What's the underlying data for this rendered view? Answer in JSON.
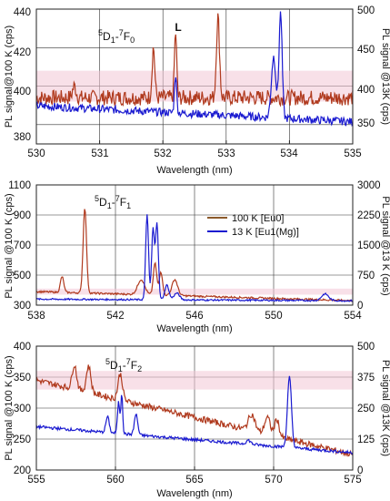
{
  "colors": {
    "series_100K": "#b03a1e",
    "series_13K": "#1a1ad0",
    "series_100K_legend": "#8b5a2b",
    "band": "#f3c6d6"
  },
  "chart_data": [
    {
      "type": "line",
      "annotation": {
        "main": "D",
        "pre1": "5",
        "sub1": "1",
        "dash": "-",
        "pre2": "7",
        "main2": "F",
        "sub2": "0"
      },
      "marker": "L",
      "xlabel": "Wavelength (nm)",
      "ylabel_left": "PL signal@100 K (cps)",
      "ylabel_right": "PL signal @13K (cps)",
      "xlim": [
        530,
        535
      ],
      "ylim_left": [
        370,
        440
      ],
      "ylim_right": [
        330,
        500
      ],
      "x_ticks": [
        "530",
        "531",
        "532",
        "533",
        "534",
        "535"
      ],
      "y_left_ticks": [
        "380",
        "400",
        "420",
        "440"
      ],
      "y_right_ticks": [
        "350",
        "400",
        "450",
        "500"
      ],
      "series": [
        {
          "axis": "left",
          "baseline": 394,
          "noise": 4,
          "x_start": 530,
          "x_end": 535,
          "peaks": [
            [
              531.85,
              420,
              0.03
            ],
            [
              532.2,
              428,
              0.025
            ],
            [
              532.87,
              436,
              0.035
            ],
            [
              530.6,
              400,
              0.04
            ]
          ]
        },
        {
          "axis": "right",
          "baseline": 378,
          "noise": 5,
          "x_start": 530,
          "x_end": 535,
          "slope_end": 358,
          "peaks": [
            [
              532.2,
              418,
              0.025
            ],
            [
              533.75,
              440,
              0.05
            ],
            [
              533.86,
              495,
              0.035
            ]
          ]
        }
      ]
    },
    {
      "type": "line",
      "annotation": {
        "main": "D",
        "pre1": "5",
        "sub1": "1",
        "dash": "-",
        "pre2": "7",
        "main2": "F",
        "sub2": "1"
      },
      "xlabel": "Wavelength (nm)",
      "ylabel_left": "PL signal @100 K (cps)",
      "ylabel_right": "PL signal @13 K (cps)",
      "xlim": [
        538,
        554
      ],
      "ylim_left": [
        300,
        1100
      ],
      "ylim_right": [
        0,
        3000
      ],
      "x_ticks": [
        "538",
        "542",
        "546",
        "550",
        "554"
      ],
      "y_left_ticks": [
        "300",
        "500",
        "700",
        "900",
        "1100"
      ],
      "y_right_ticks": [
        "0",
        "750",
        "1500",
        "2250",
        "3000"
      ],
      "legend": [
        {
          "label": "100 K [Eu0]",
          "color_key": "series_100K_legend"
        },
        {
          "label": "13 K [Eu1(Mg)]",
          "color_key": "series_13K"
        }
      ],
      "series": [
        {
          "axis": "left",
          "baseline": 390,
          "noise": 6,
          "x_start": 538,
          "x_end": 554,
          "slope_end": 330,
          "peaks": [
            [
              539.3,
              490,
              0.12
            ],
            [
              540.45,
              950,
              0.12
            ],
            [
              543.3,
              470,
              0.25
            ],
            [
              544.0,
              580,
              0.12
            ],
            [
              544.3,
              520,
              0.12
            ],
            [
              545.0,
              470,
              0.2
            ]
          ]
        },
        {
          "axis": "right",
          "baseline": 150,
          "noise": 20,
          "x_start": 538,
          "x_end": 554,
          "slope_end": 110,
          "peaks": [
            [
              543.6,
              2280,
              0.1
            ],
            [
              543.9,
              1900,
              0.1
            ],
            [
              544.1,
              2050,
              0.1
            ],
            [
              544.6,
              500,
              0.15
            ],
            [
              545.1,
              300,
              0.2
            ],
            [
              552.6,
              280,
              0.25
            ]
          ]
        }
      ]
    },
    {
      "type": "line",
      "annotation": {
        "main": "D",
        "pre1": "5",
        "sub1": "1",
        "dash": "-",
        "pre2": "7",
        "main2": "F",
        "sub2": "2"
      },
      "xlabel": "Wavelength (nm)",
      "ylabel_left": "PL signal @100 K (cps)",
      "ylabel_right": "PL signal @13K (cps)",
      "xlim": [
        555,
        575
      ],
      "ylim_left": [
        200,
        400
      ],
      "ylim_right": [
        0,
        500
      ],
      "x_ticks": [
        "555",
        "560",
        "565",
        "570",
        "575"
      ],
      "y_left_ticks": [
        "200",
        "250",
        "300",
        "350",
        "400"
      ],
      "y_right_ticks": [
        "0",
        "125",
        "250",
        "375",
        "500"
      ],
      "series": [
        {
          "axis": "left",
          "baseline": 345,
          "noise": 5,
          "x_start": 555,
          "x_end": 575,
          "slope_end": 225,
          "peaks": [
            [
              557.4,
              370,
              0.2
            ],
            [
              558.3,
              368,
              0.2
            ],
            [
              560.3,
              355,
              0.2
            ],
            [
              568.6,
              290,
              0.3
            ],
            [
              569.6,
              285,
              0.25
            ],
            [
              570.2,
              282,
              0.2
            ]
          ]
        },
        {
          "axis": "right",
          "baseline": 175,
          "noise": 6,
          "x_start": 555,
          "x_end": 575,
          "slope_end": 70,
          "peaks": [
            [
              559.5,
              215,
              0.15
            ],
            [
              560.2,
              275,
              0.1
            ],
            [
              560.4,
              310,
              0.08
            ],
            [
              561.3,
              225,
              0.15
            ],
            [
              568.4,
              120,
              0.2
            ],
            [
              571.0,
              375,
              0.18
            ]
          ]
        }
      ]
    }
  ]
}
